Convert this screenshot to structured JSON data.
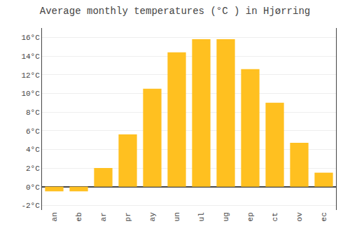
{
  "chart_data": {
    "type": "bar",
    "title": "Average monthly temperatures (°C ) in Hjørring",
    "categories": [
      "an",
      "eb",
      "ar",
      "pr",
      "ay",
      "un",
      "ul",
      "ug",
      "ep",
      "ct",
      "ov",
      "ec"
    ],
    "values": [
      -0.5,
      -0.5,
      2.0,
      5.6,
      10.5,
      14.4,
      15.8,
      15.8,
      12.6,
      9.0,
      4.7,
      1.5
    ],
    "color": "#FFC020",
    "ylim": [
      -2.5,
      17
    ],
    "yticks": [
      {
        "value": -2,
        "label": "-2°C"
      },
      {
        "value": 0,
        "label": "0°C"
      },
      {
        "value": 2,
        "label": "2°C"
      },
      {
        "value": 4,
        "label": "4°C"
      },
      {
        "value": 6,
        "label": "6°C"
      },
      {
        "value": 8,
        "label": "8°C"
      },
      {
        "value": 10,
        "label": "10°C"
      },
      {
        "value": 12,
        "label": "12°C"
      },
      {
        "value": 14,
        "label": "14°C"
      },
      {
        "value": 16,
        "label": "16°C"
      }
    ],
    "grid": true
  }
}
